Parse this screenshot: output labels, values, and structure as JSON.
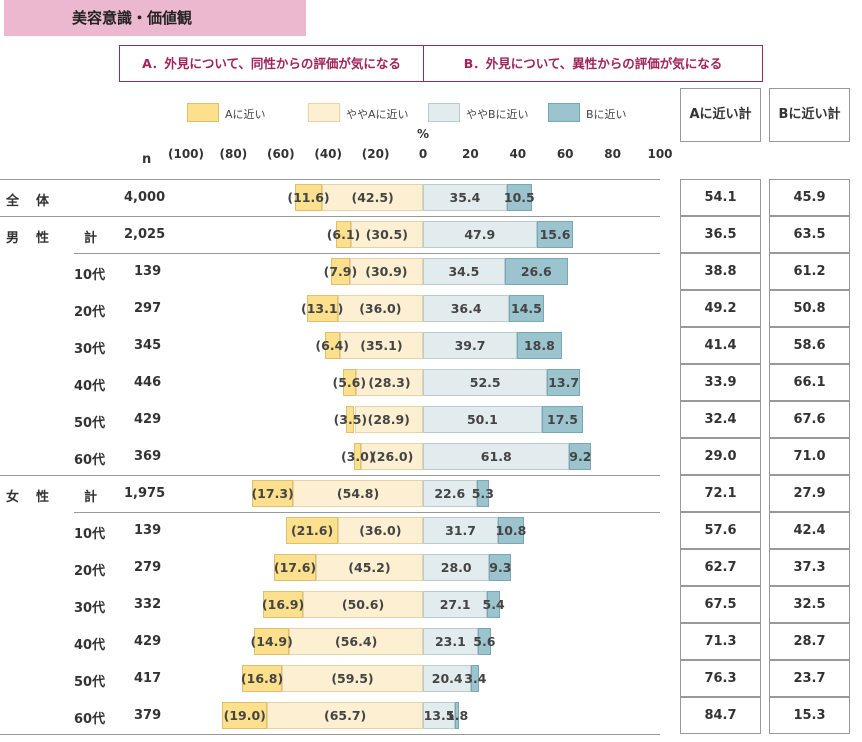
{
  "title": "美容意識・価値観",
  "header_a": "A．外見について、同性からの評価が気になる",
  "header_b": "B．外見について、異性からの評価が気になる",
  "legend": [
    {
      "label": "Aに近い",
      "color": "#fde08e"
    },
    {
      "label": "ややAに近い",
      "color": "#fdf0d2"
    },
    {
      "label": "ややBに近い",
      "color": "#e2ecee"
    },
    {
      "label": "Bに近い",
      "color": "#9cc4cf"
    }
  ],
  "percent_label": "%",
  "n_label": "n",
  "scale_ticks": [
    "(100)",
    "(80)",
    "(60)",
    "(40)",
    "(20)",
    "0",
    "20",
    "40",
    "60",
    "80",
    "100"
  ],
  "summary_a_header": "Aに近い計",
  "summary_b_header": "Bに近い計",
  "chart_data": {
    "type": "bar",
    "subtype": "diverging-stacked-horizontal",
    "xlim": [
      -100,
      100
    ],
    "series_names": [
      "Aに近い",
      "ややAに近い",
      "ややBに近い",
      "Bに近い"
    ],
    "rows": [
      {
        "group": "全　体",
        "label": "",
        "n": "4,000",
        "a": 11.6,
        "ya": 42.5,
        "yb": 35.4,
        "b": 10.5,
        "a_total": "54.1",
        "b_total": "45.9"
      },
      {
        "group": "男　性",
        "label": "計",
        "n": "2,025",
        "a": 6.1,
        "ya": 30.5,
        "yb": 47.9,
        "b": 15.6,
        "a_total": "36.5",
        "b_total": "63.5"
      },
      {
        "group": "",
        "label": "10代",
        "n": "139",
        "a": 7.9,
        "ya": 30.9,
        "yb": 34.5,
        "b": 26.6,
        "a_total": "38.8",
        "b_total": "61.2"
      },
      {
        "group": "",
        "label": "20代",
        "n": "297",
        "a": 13.1,
        "ya": 36.0,
        "yb": 36.4,
        "b": 14.5,
        "a_total": "49.2",
        "b_total": "50.8"
      },
      {
        "group": "",
        "label": "30代",
        "n": "345",
        "a": 6.4,
        "ya": 35.1,
        "yb": 39.7,
        "b": 18.8,
        "a_total": "41.4",
        "b_total": "58.6"
      },
      {
        "group": "",
        "label": "40代",
        "n": "446",
        "a": 5.6,
        "ya": 28.3,
        "yb": 52.5,
        "b": 13.7,
        "a_total": "33.9",
        "b_total": "66.1"
      },
      {
        "group": "",
        "label": "50代",
        "n": "429",
        "a": 3.5,
        "ya": 28.9,
        "yb": 50.1,
        "b": 17.5,
        "a_total": "32.4",
        "b_total": "67.6"
      },
      {
        "group": "",
        "label": "60代",
        "n": "369",
        "a": 3.0,
        "ya": 26.0,
        "yb": 61.8,
        "b": 9.2,
        "a_total": "29.0",
        "b_total": "71.0"
      },
      {
        "group": "女　性",
        "label": "計",
        "n": "1,975",
        "a": 17.3,
        "ya": 54.8,
        "yb": 22.6,
        "b": 5.3,
        "a_total": "72.1",
        "b_total": "27.9"
      },
      {
        "group": "",
        "label": "10代",
        "n": "139",
        "a": 21.6,
        "ya": 36.0,
        "yb": 31.7,
        "b": 10.8,
        "a_total": "57.6",
        "b_total": "42.4"
      },
      {
        "group": "",
        "label": "20代",
        "n": "279",
        "a": 17.6,
        "ya": 45.2,
        "yb": 28.0,
        "b": 9.3,
        "a_total": "62.7",
        "b_total": "37.3"
      },
      {
        "group": "",
        "label": "30代",
        "n": "332",
        "a": 16.9,
        "ya": 50.6,
        "yb": 27.1,
        "b": 5.4,
        "a_total": "67.5",
        "b_total": "32.5"
      },
      {
        "group": "",
        "label": "40代",
        "n": "429",
        "a": 14.9,
        "ya": 56.4,
        "yb": 23.1,
        "b": 5.6,
        "a_total": "71.3",
        "b_total": "28.7"
      },
      {
        "group": "",
        "label": "50代",
        "n": "417",
        "a": 16.8,
        "ya": 59.5,
        "yb": 20.4,
        "b": 3.4,
        "a_total": "76.3",
        "b_total": "23.7"
      },
      {
        "group": "",
        "label": "60代",
        "n": "379",
        "a": 19.0,
        "ya": 65.7,
        "yb": 13.5,
        "b": 1.8,
        "a_total": "84.7",
        "b_total": "15.3"
      }
    ]
  }
}
